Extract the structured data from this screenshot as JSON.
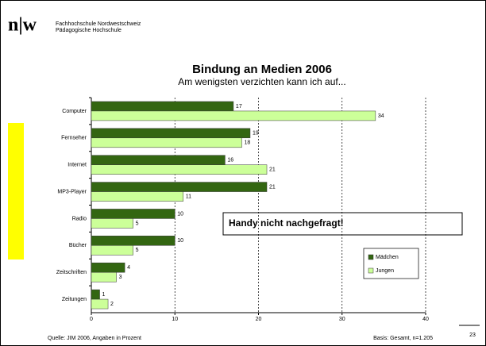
{
  "header": {
    "logo": "n|w",
    "line1": "Fachhochschule Nordwestschweiz",
    "line2": "Pädagogische Hochschule"
  },
  "chart_data": {
    "type": "bar",
    "orientation": "horizontal",
    "title": "Bindung an Medien 2006",
    "subtitle": "Am wenigsten verzichten kann ich auf...",
    "categories": [
      "Computer",
      "Fernseher",
      "Internet",
      "MP3-Player",
      "Radio",
      "Bücher",
      "Zeitschriften",
      "Zeitungen"
    ],
    "series": [
      {
        "name": "Mädchen",
        "color": "#336611",
        "values": [
          17,
          19,
          16,
          21,
          10,
          10,
          4,
          1
        ]
      },
      {
        "name": "Jungen",
        "color": "#ccff99",
        "values": [
          34,
          18,
          21,
          11,
          5,
          5,
          3,
          2
        ]
      }
    ],
    "xlim": [
      0,
      40
    ],
    "xticks": [
      0,
      10,
      20,
      30,
      40
    ],
    "grid": true,
    "legend": "lower right",
    "annotation": "Handy nicht nachgefragt!"
  },
  "footer": {
    "source": "Quelle: JIM 2006, Angaben in Prozent",
    "basis": "Basis: Gesamt, n=1.205",
    "page": "23"
  }
}
